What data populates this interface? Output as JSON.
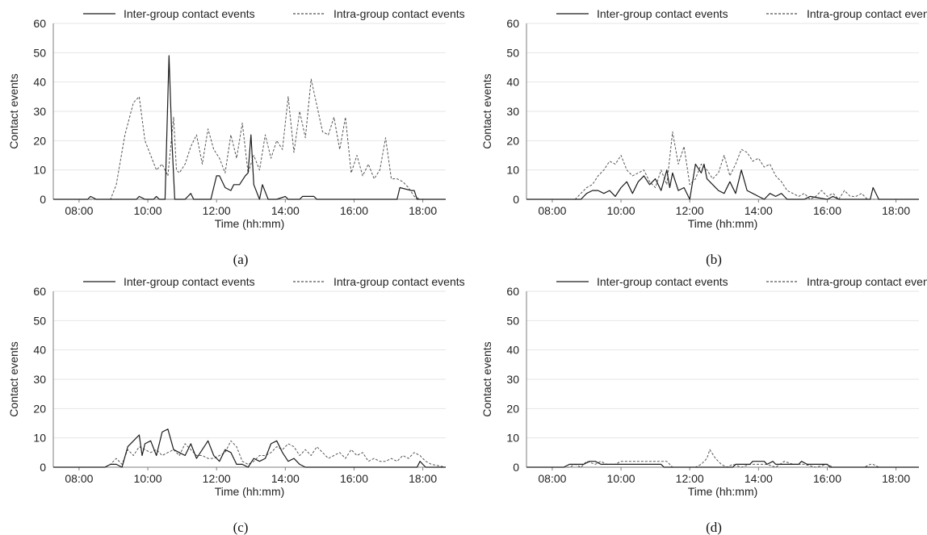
{
  "colors": {
    "inter": "#1a1a1a",
    "intra": "#555555",
    "grid": "#e6e6e6",
    "axis": "#7f7f7f"
  },
  "chart_data": [
    {
      "panel_label": "(a)",
      "type": "line",
      "xlabel": "Time (hh:mm)",
      "ylabel": "Contact events",
      "ylim": [
        0,
        60
      ],
      "yticks": [
        0,
        10,
        20,
        30,
        40,
        50,
        60
      ],
      "xlim": [
        "07:15",
        "18:40"
      ],
      "xticks": [
        "08:00",
        "10:00",
        "12:00",
        "14:00",
        "16:00",
        "18:00"
      ],
      "legend_position": "top",
      "grid": true,
      "series": [
        {
          "name": "Inter-group contact events",
          "style": "solid",
          "x": [
            "07:15",
            "08:15",
            "08:20",
            "08:30",
            "09:40",
            "09:45",
            "09:55",
            "10:10",
            "10:15",
            "10:20",
            "10:30",
            "10:37",
            "10:42",
            "10:47",
            "10:55",
            "11:05",
            "11:15",
            "11:20",
            "11:30",
            "11:50",
            "12:00",
            "12:05",
            "12:15",
            "12:25",
            "12:30",
            "12:40",
            "12:50",
            "12:55",
            "13:00",
            "13:05",
            "13:15",
            "13:20",
            "13:30",
            "13:45",
            "14:00",
            "14:05",
            "14:10",
            "14:25",
            "14:30",
            "14:50",
            "14:55",
            "17:15",
            "17:20",
            "17:40",
            "17:45",
            "17:50",
            "18:40"
          ],
          "values": [
            0,
            0,
            1,
            0,
            0,
            1,
            0,
            0,
            1,
            0,
            0,
            49,
            20,
            0,
            0,
            0,
            2,
            0,
            0,
            0,
            8,
            8,
            4,
            3,
            5,
            5,
            8,
            9,
            22,
            5,
            0,
            5,
            0,
            0,
            1,
            0,
            0,
            0,
            1,
            1,
            0,
            0,
            4,
            3,
            3,
            0,
            0
          ]
        },
        {
          "name": "Intra-group contact events",
          "style": "dashed",
          "x": [
            "07:15",
            "08:55",
            "09:05",
            "09:20",
            "09:35",
            "09:45",
            "09:55",
            "10:05",
            "10:15",
            "10:25",
            "10:35",
            "10:45",
            "10:50",
            "10:55",
            "11:05",
            "11:15",
            "11:25",
            "11:35",
            "11:45",
            "11:55",
            "12:05",
            "12:15",
            "12:25",
            "12:35",
            "12:45",
            "12:55",
            "13:05",
            "13:15",
            "13:25",
            "13:35",
            "13:45",
            "13:55",
            "14:05",
            "14:15",
            "14:25",
            "14:35",
            "14:45",
            "14:55",
            "15:05",
            "15:15",
            "15:25",
            "15:35",
            "15:45",
            "15:55",
            "16:05",
            "16:15",
            "16:25",
            "16:35",
            "16:45",
            "16:55",
            "17:05",
            "17:15",
            "17:25",
            "17:35",
            "17:45",
            "17:55",
            "18:05",
            "18:15",
            "18:25",
            "18:40"
          ],
          "values": [
            0,
            0,
            5,
            22,
            33,
            35,
            20,
            15,
            10,
            12,
            8,
            28,
            10,
            9,
            12,
            18,
            22,
            12,
            24,
            17,
            14,
            9,
            22,
            14,
            26,
            9,
            15,
            10,
            22,
            14,
            20,
            17,
            35,
            16,
            30,
            21,
            41,
            32,
            23,
            22,
            28,
            17,
            28,
            9,
            15,
            8,
            12,
            7,
            10,
            21,
            7,
            7,
            6,
            4,
            1,
            0,
            0,
            0,
            0,
            0
          ]
        }
      ]
    },
    {
      "panel_label": "(b)",
      "type": "line",
      "xlabel": "Time (hh:mm)",
      "ylabel": "Contact events",
      "ylim": [
        0,
        60
      ],
      "yticks": [
        0,
        10,
        20,
        30,
        40,
        50,
        60
      ],
      "xlim": [
        "07:15",
        "18:40"
      ],
      "xticks": [
        "08:00",
        "10:00",
        "12:00",
        "14:00",
        "16:00",
        "18:00"
      ],
      "legend_position": "top",
      "grid": true,
      "series": [
        {
          "name": "Inter-group contact events",
          "style": "solid",
          "x": [
            "07:15",
            "08:50",
            "09:00",
            "09:10",
            "09:20",
            "09:30",
            "09:40",
            "09:50",
            "10:00",
            "10:10",
            "10:20",
            "10:30",
            "10:40",
            "10:50",
            "11:00",
            "11:10",
            "11:20",
            "11:25",
            "11:30",
            "11:40",
            "11:50",
            "12:00",
            "12:10",
            "12:20",
            "12:25",
            "12:30",
            "12:40",
            "12:50",
            "13:00",
            "13:10",
            "13:20",
            "13:30",
            "13:40",
            "13:50",
            "14:00",
            "14:10",
            "14:20",
            "14:30",
            "14:40",
            "14:50",
            "15:00",
            "15:10",
            "15:20",
            "15:30",
            "16:00",
            "16:10",
            "16:20",
            "17:15",
            "17:20",
            "17:30",
            "18:40"
          ],
          "values": [
            0,
            0,
            2,
            3,
            3,
            2,
            3,
            1,
            4,
            6,
            2,
            6,
            8,
            5,
            7,
            3,
            10,
            4,
            9,
            3,
            4,
            0,
            12,
            9,
            12,
            7,
            5,
            3,
            2,
            6,
            2,
            10,
            3,
            2,
            1,
            0,
            2,
            1,
            2,
            0,
            0,
            0,
            0,
            1,
            0,
            1,
            0,
            0,
            4,
            0,
            0
          ]
        },
        {
          "name": "Intra-group contact events",
          "style": "dashed",
          "x": [
            "07:15",
            "08:40",
            "08:50",
            "09:00",
            "09:10",
            "09:20",
            "09:30",
            "09:40",
            "09:50",
            "10:00",
            "10:10",
            "10:20",
            "10:30",
            "10:40",
            "10:50",
            "11:00",
            "11:10",
            "11:20",
            "11:30",
            "11:40",
            "11:50",
            "12:00",
            "12:10",
            "12:20",
            "12:30",
            "12:40",
            "12:50",
            "13:00",
            "13:10",
            "13:20",
            "13:30",
            "13:40",
            "13:50",
            "14:00",
            "14:10",
            "14:20",
            "14:30",
            "14:40",
            "14:50",
            "15:00",
            "15:10",
            "15:20",
            "15:30",
            "15:40",
            "15:50",
            "16:00",
            "16:10",
            "16:20",
            "16:30",
            "16:40",
            "16:50",
            "17:00",
            "17:10",
            "17:20",
            "17:30",
            "18:40"
          ],
          "values": [
            0,
            0,
            2,
            4,
            5,
            8,
            10,
            13,
            12,
            15,
            10,
            8,
            9,
            10,
            6,
            4,
            10,
            5,
            23,
            12,
            18,
            5,
            7,
            12,
            10,
            7,
            9,
            15,
            8,
            12,
            17,
            16,
            13,
            14,
            11,
            12,
            8,
            6,
            3,
            2,
            1,
            2,
            0,
            1,
            3,
            1,
            2,
            0,
            3,
            1,
            1,
            2,
            0,
            0,
            0,
            0
          ]
        }
      ]
    },
    {
      "panel_label": "(c)",
      "type": "line",
      "xlabel": "Time (hh:mm)",
      "ylabel": "Contact events",
      "ylim": [
        0,
        60
      ],
      "yticks": [
        0,
        10,
        20,
        30,
        40,
        50,
        60
      ],
      "xlim": [
        "07:15",
        "18:40"
      ],
      "xticks": [
        "08:00",
        "10:00",
        "12:00",
        "14:00",
        "16:00",
        "18:00"
      ],
      "legend_position": "top",
      "grid": true,
      "series": [
        {
          "name": "Inter-group contact events",
          "style": "solid",
          "x": [
            "07:15",
            "08:45",
            "08:55",
            "09:05",
            "09:15",
            "09:25",
            "09:35",
            "09:45",
            "09:50",
            "09:55",
            "10:05",
            "10:15",
            "10:25",
            "10:35",
            "10:45",
            "10:55",
            "11:05",
            "11:15",
            "11:25",
            "11:35",
            "11:45",
            "11:55",
            "12:05",
            "12:15",
            "12:25",
            "12:35",
            "12:45",
            "12:55",
            "13:05",
            "13:15",
            "13:25",
            "13:35",
            "13:45",
            "13:55",
            "14:05",
            "14:15",
            "14:25",
            "14:35",
            "17:50",
            "17:55",
            "18:00",
            "18:05",
            "18:40"
          ],
          "values": [
            0,
            0,
            1,
            1,
            0,
            7,
            9,
            11,
            4,
            8,
            9,
            4,
            12,
            13,
            6,
            5,
            4,
            8,
            3,
            6,
            9,
            4,
            2,
            6,
            5,
            1,
            1,
            0,
            3,
            2,
            3,
            8,
            9,
            5,
            2,
            3,
            1,
            0,
            0,
            2,
            1,
            0,
            0
          ]
        },
        {
          "name": "Intra-group contact events",
          "style": "dashed",
          "x": [
            "07:15",
            "08:45",
            "08:55",
            "09:05",
            "09:15",
            "09:25",
            "09:35",
            "09:45",
            "09:55",
            "10:05",
            "10:15",
            "10:25",
            "10:35",
            "10:45",
            "10:55",
            "11:05",
            "11:15",
            "11:25",
            "11:35",
            "11:45",
            "11:55",
            "12:05",
            "12:15",
            "12:25",
            "12:35",
            "12:45",
            "12:55",
            "13:05",
            "13:15",
            "13:25",
            "13:35",
            "13:45",
            "13:55",
            "14:05",
            "14:15",
            "14:25",
            "14:35",
            "14:45",
            "14:55",
            "15:05",
            "15:15",
            "15:25",
            "15:35",
            "15:45",
            "15:55",
            "16:05",
            "16:15",
            "16:25",
            "16:35",
            "16:45",
            "16:55",
            "17:05",
            "17:15",
            "17:25",
            "17:35",
            "17:45",
            "17:55",
            "18:05",
            "18:15",
            "18:40"
          ],
          "values": [
            0,
            0,
            1,
            3,
            1,
            6,
            4,
            7,
            6,
            5,
            6,
            4,
            5,
            6,
            4,
            8,
            6,
            4,
            4,
            3,
            3,
            4,
            5,
            9,
            7,
            2,
            1,
            2,
            4,
            4,
            5,
            7,
            6,
            8,
            7,
            4,
            6,
            4,
            7,
            5,
            3,
            4,
            5,
            3,
            6,
            4,
            5,
            2,
            3,
            2,
            2,
            3,
            2,
            4,
            3,
            5,
            4,
            2,
            1,
            0
          ]
        }
      ]
    },
    {
      "panel_label": "(d)",
      "type": "line",
      "xlabel": "Time (hh:mm)",
      "ylabel": "Contact events",
      "ylim": [
        0,
        60
      ],
      "yticks": [
        0,
        10,
        20,
        30,
        40,
        50,
        60
      ],
      "xlim": [
        "07:15",
        "18:40"
      ],
      "xticks": [
        "08:00",
        "10:00",
        "12:00",
        "14:00",
        "16:00",
        "18:00"
      ],
      "legend_position": "top",
      "grid": true,
      "series": [
        {
          "name": "Inter-group contact events",
          "style": "solid",
          "x": [
            "07:15",
            "08:20",
            "08:30",
            "08:55",
            "09:05",
            "09:15",
            "09:25",
            "10:00",
            "10:05",
            "11:10",
            "11:15",
            "13:15",
            "13:20",
            "13:45",
            "13:50",
            "14:10",
            "14:15",
            "14:25",
            "14:30",
            "15:10",
            "15:15",
            "15:25",
            "15:30",
            "16:00",
            "16:05",
            "18:40"
          ],
          "values": [
            0,
            0,
            1,
            1,
            2,
            2,
            1,
            1,
            1,
            1,
            0,
            0,
            1,
            1,
            2,
            2,
            1,
            2,
            1,
            1,
            2,
            1,
            1,
            1,
            0,
            0
          ]
        },
        {
          "name": "Intra-group contact events",
          "style": "dashed",
          "x": [
            "07:15",
            "08:30",
            "08:40",
            "08:50",
            "09:00",
            "09:15",
            "09:25",
            "09:35",
            "09:50",
            "10:00",
            "10:10",
            "10:20",
            "10:30",
            "10:40",
            "10:50",
            "11:00",
            "11:10",
            "11:20",
            "11:30",
            "12:10",
            "12:20",
            "12:30",
            "12:35",
            "12:45",
            "12:55",
            "13:05",
            "13:15",
            "13:30",
            "13:45",
            "14:00",
            "14:15",
            "14:30",
            "14:45",
            "15:00",
            "15:20",
            "15:40",
            "16:00",
            "16:10",
            "17:05",
            "17:15",
            "17:20",
            "17:30",
            "18:40"
          ],
          "values": [
            0,
            0,
            1,
            0,
            2,
            1,
            2,
            1,
            1,
            2,
            2,
            2,
            2,
            2,
            2,
            2,
            2,
            2,
            0,
            0,
            1,
            3,
            6,
            3,
            1,
            0,
            1,
            0,
            1,
            1,
            1,
            0,
            2,
            1,
            1,
            0,
            1,
            0,
            0,
            1,
            1,
            0,
            0
          ]
        }
      ]
    }
  ]
}
